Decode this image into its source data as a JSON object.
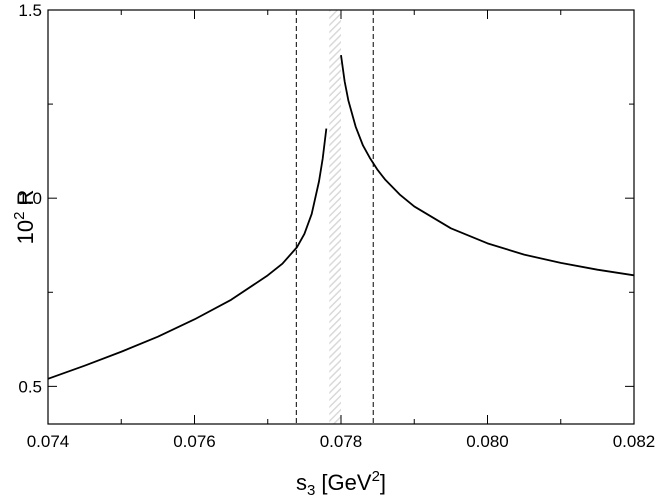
{
  "chart_data": {
    "type": "line",
    "xlim": [
      0.074,
      0.082
    ],
    "ylim": [
      0.4,
      1.5
    ],
    "x_ticks": [
      "0.074",
      "0.076",
      "0.078",
      "0.080",
      "0.082"
    ],
    "x_tick_values": [
      0.074,
      0.076,
      0.078,
      0.08,
      0.082
    ],
    "y_ticks": [
      "0.5",
      "1.0",
      "1.5"
    ],
    "y_tick_values": [
      0.5,
      1.0,
      1.5
    ],
    "xlabel": {
      "base": "s",
      "sub": "3",
      "unit_open": " [GeV",
      "sup": "2",
      "unit_close": "]"
    },
    "ylabel": {
      "base": "10",
      "sup": "2",
      "symbol": " R"
    },
    "grid": false,
    "legend": "none",
    "series_color": "#000000",
    "vertical_lines": [
      0.07739,
      0.07844
    ],
    "shaded_band": [
      0.07784,
      0.078
    ],
    "shaded_band_color": "#d9d9d9",
    "series": [
      {
        "x": [
          0.074,
          0.0745,
          0.075,
          0.0755,
          0.076,
          0.0765,
          0.077,
          0.0772,
          0.0774,
          0.0775,
          0.0776,
          0.0777,
          0.07775,
          0.0778
        ],
        "values": [
          0.52,
          0.555,
          0.592,
          0.632,
          0.678,
          0.73,
          0.795,
          0.826,
          0.87,
          0.905,
          0.958,
          1.045,
          1.105,
          1.185
        ]
      },
      {
        "x": [
          0.078,
          0.07805,
          0.0781,
          0.0782,
          0.0783,
          0.0784,
          0.0785,
          0.0786,
          0.0788,
          0.079,
          0.0795,
          0.08,
          0.0805,
          0.081,
          0.0815,
          0.082
        ],
        "values": [
          1.38,
          1.31,
          1.26,
          1.19,
          1.14,
          1.105,
          1.075,
          1.05,
          1.01,
          0.978,
          0.92,
          0.88,
          0.85,
          0.828,
          0.81,
          0.795
        ]
      }
    ]
  }
}
